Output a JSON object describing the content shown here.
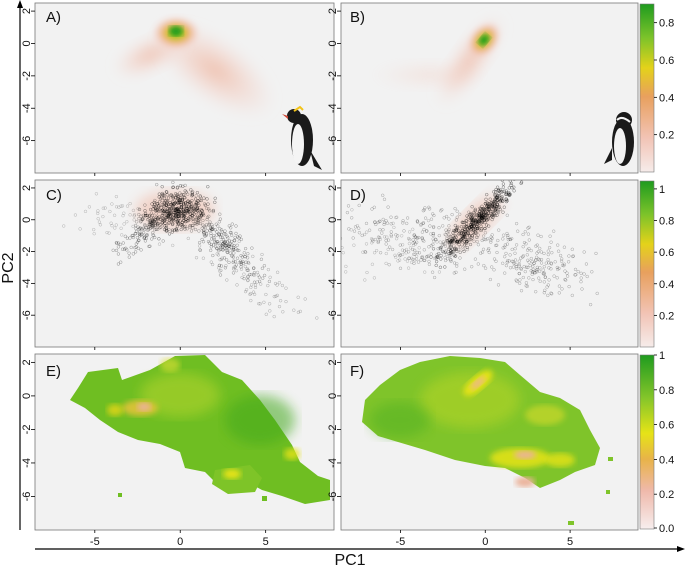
{
  "figure": {
    "xlabel": "PC1",
    "ylabel": "PC2",
    "x_ticks": [
      "-5",
      "0",
      "5"
    ],
    "y_ticks": [
      "2",
      "0",
      "-2",
      "-4",
      "-6"
    ],
    "panel_labels": [
      "A)",
      "B)",
      "C)",
      "D)",
      "E)",
      "F)"
    ],
    "colorbar_ticks": {
      "row1": [
        "0.2",
        "0.4",
        "0.6",
        "0.8"
      ],
      "row2": [
        "0.2",
        "0.4",
        "0.6",
        "0.8",
        "1"
      ],
      "row3": [
        "0.0",
        "0.2",
        "0.4",
        "0.6",
        "0.8",
        "1"
      ]
    },
    "colors": {
      "panel_bg": "#f2f2f2",
      "low": "#f4c7bd",
      "mid": "#e8a46a",
      "high_yellow": "#e6e317",
      "green": "#1f9b1f"
    },
    "icons": [
      "rockhopper-penguin-icon",
      "african-penguin-icon"
    ]
  },
  "chart_data": [
    {
      "type": "heatmap",
      "panel": "A)",
      "xlim": [
        -8.5,
        9
      ],
      "ylim": [
        -8,
        2.5
      ],
      "value_range": [
        0,
        0.9
      ],
      "peak": [
        0.2,
        0.8
      ],
      "description_none": ""
    },
    {
      "type": "heatmap",
      "panel": "B)",
      "xlim": [
        -8.5,
        9
      ],
      "ylim": [
        -8,
        2.5
      ],
      "value_range": [
        0,
        0.9
      ],
      "peak": [
        -0.5,
        0.3
      ]
    },
    {
      "type": "scatter",
      "panel": "C)",
      "xlim": [
        -8.5,
        9
      ],
      "ylim": [
        -8,
        2.5
      ],
      "value_range": [
        0,
        1
      ]
    },
    {
      "type": "scatter",
      "panel": "D)",
      "xlim": [
        -8.5,
        9
      ],
      "ylim": [
        -8,
        2.5
      ],
      "value_range": [
        0,
        1
      ]
    },
    {
      "type": "heatmap",
      "panel": "E)",
      "xlim": [
        -8.5,
        9
      ],
      "ylim": [
        -8,
        2.5
      ],
      "value_range": [
        0,
        1
      ]
    },
    {
      "type": "heatmap",
      "panel": "F)",
      "xlim": [
        -8.5,
        9
      ],
      "ylim": [
        -8,
        2.5
      ],
      "value_range": [
        0,
        1
      ]
    }
  ]
}
